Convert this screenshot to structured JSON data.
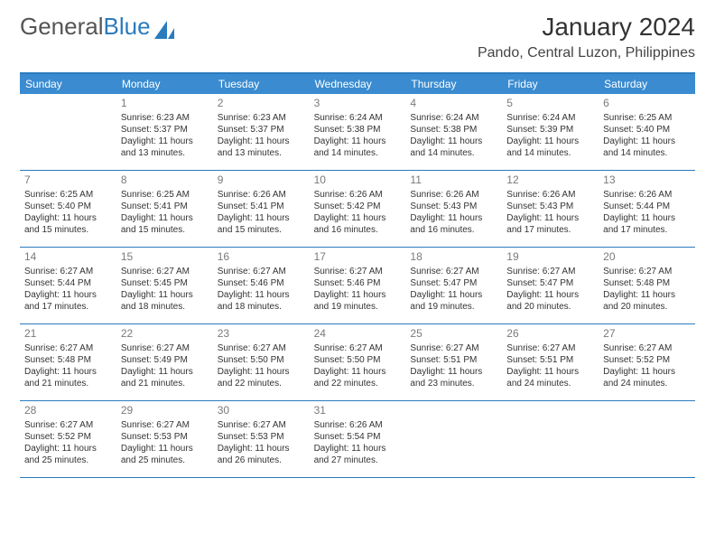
{
  "logo": {
    "text1": "General",
    "text2": "Blue"
  },
  "header": {
    "month_title": "January 2024",
    "location": "Pando, Central Luzon, Philippines"
  },
  "colors": {
    "brand_blue": "#3a8bd0",
    "border_blue": "#2b7bbd",
    "text": "#333333",
    "daynum": "#7a7a7a",
    "background": "#ffffff"
  },
  "typography": {
    "month_title_fontsize": 28,
    "location_fontsize": 16,
    "dayheader_fontsize": 12,
    "daynum_fontsize": 12,
    "cell_fontsize": 10
  },
  "day_names": [
    "Sunday",
    "Monday",
    "Tuesday",
    "Wednesday",
    "Thursday",
    "Friday",
    "Saturday"
  ],
  "weeks": [
    [
      null,
      {
        "n": "1",
        "sunrise": "6:23 AM",
        "sunset": "5:37 PM",
        "day_h": "11",
        "day_m": "13"
      },
      {
        "n": "2",
        "sunrise": "6:23 AM",
        "sunset": "5:37 PM",
        "day_h": "11",
        "day_m": "13"
      },
      {
        "n": "3",
        "sunrise": "6:24 AM",
        "sunset": "5:38 PM",
        "day_h": "11",
        "day_m": "14"
      },
      {
        "n": "4",
        "sunrise": "6:24 AM",
        "sunset": "5:38 PM",
        "day_h": "11",
        "day_m": "14"
      },
      {
        "n": "5",
        "sunrise": "6:24 AM",
        "sunset": "5:39 PM",
        "day_h": "11",
        "day_m": "14"
      },
      {
        "n": "6",
        "sunrise": "6:25 AM",
        "sunset": "5:40 PM",
        "day_h": "11",
        "day_m": "14"
      }
    ],
    [
      {
        "n": "7",
        "sunrise": "6:25 AM",
        "sunset": "5:40 PM",
        "day_h": "11",
        "day_m": "15"
      },
      {
        "n": "8",
        "sunrise": "6:25 AM",
        "sunset": "5:41 PM",
        "day_h": "11",
        "day_m": "15"
      },
      {
        "n": "9",
        "sunrise": "6:26 AM",
        "sunset": "5:41 PM",
        "day_h": "11",
        "day_m": "15"
      },
      {
        "n": "10",
        "sunrise": "6:26 AM",
        "sunset": "5:42 PM",
        "day_h": "11",
        "day_m": "16"
      },
      {
        "n": "11",
        "sunrise": "6:26 AM",
        "sunset": "5:43 PM",
        "day_h": "11",
        "day_m": "16"
      },
      {
        "n": "12",
        "sunrise": "6:26 AM",
        "sunset": "5:43 PM",
        "day_h": "11",
        "day_m": "17"
      },
      {
        "n": "13",
        "sunrise": "6:26 AM",
        "sunset": "5:44 PM",
        "day_h": "11",
        "day_m": "17"
      }
    ],
    [
      {
        "n": "14",
        "sunrise": "6:27 AM",
        "sunset": "5:44 PM",
        "day_h": "11",
        "day_m": "17"
      },
      {
        "n": "15",
        "sunrise": "6:27 AM",
        "sunset": "5:45 PM",
        "day_h": "11",
        "day_m": "18"
      },
      {
        "n": "16",
        "sunrise": "6:27 AM",
        "sunset": "5:46 PM",
        "day_h": "11",
        "day_m": "18"
      },
      {
        "n": "17",
        "sunrise": "6:27 AM",
        "sunset": "5:46 PM",
        "day_h": "11",
        "day_m": "19"
      },
      {
        "n": "18",
        "sunrise": "6:27 AM",
        "sunset": "5:47 PM",
        "day_h": "11",
        "day_m": "19"
      },
      {
        "n": "19",
        "sunrise": "6:27 AM",
        "sunset": "5:47 PM",
        "day_h": "11",
        "day_m": "20"
      },
      {
        "n": "20",
        "sunrise": "6:27 AM",
        "sunset": "5:48 PM",
        "day_h": "11",
        "day_m": "20"
      }
    ],
    [
      {
        "n": "21",
        "sunrise": "6:27 AM",
        "sunset": "5:48 PM",
        "day_h": "11",
        "day_m": "21"
      },
      {
        "n": "22",
        "sunrise": "6:27 AM",
        "sunset": "5:49 PM",
        "day_h": "11",
        "day_m": "21"
      },
      {
        "n": "23",
        "sunrise": "6:27 AM",
        "sunset": "5:50 PM",
        "day_h": "11",
        "day_m": "22"
      },
      {
        "n": "24",
        "sunrise": "6:27 AM",
        "sunset": "5:50 PM",
        "day_h": "11",
        "day_m": "22"
      },
      {
        "n": "25",
        "sunrise": "6:27 AM",
        "sunset": "5:51 PM",
        "day_h": "11",
        "day_m": "23"
      },
      {
        "n": "26",
        "sunrise": "6:27 AM",
        "sunset": "5:51 PM",
        "day_h": "11",
        "day_m": "24"
      },
      {
        "n": "27",
        "sunrise": "6:27 AM",
        "sunset": "5:52 PM",
        "day_h": "11",
        "day_m": "24"
      }
    ],
    [
      {
        "n": "28",
        "sunrise": "6:27 AM",
        "sunset": "5:52 PM",
        "day_h": "11",
        "day_m": "25"
      },
      {
        "n": "29",
        "sunrise": "6:27 AM",
        "sunset": "5:53 PM",
        "day_h": "11",
        "day_m": "25"
      },
      {
        "n": "30",
        "sunrise": "6:27 AM",
        "sunset": "5:53 PM",
        "day_h": "11",
        "day_m": "26"
      },
      {
        "n": "31",
        "sunrise": "6:26 AM",
        "sunset": "5:54 PM",
        "day_h": "11",
        "day_m": "27"
      },
      null,
      null,
      null
    ]
  ],
  "labels": {
    "sunrise": "Sunrise:",
    "sunset": "Sunset:",
    "daylight1": "Daylight:",
    "hours": "hours",
    "and": "and",
    "minutes": "minutes."
  }
}
